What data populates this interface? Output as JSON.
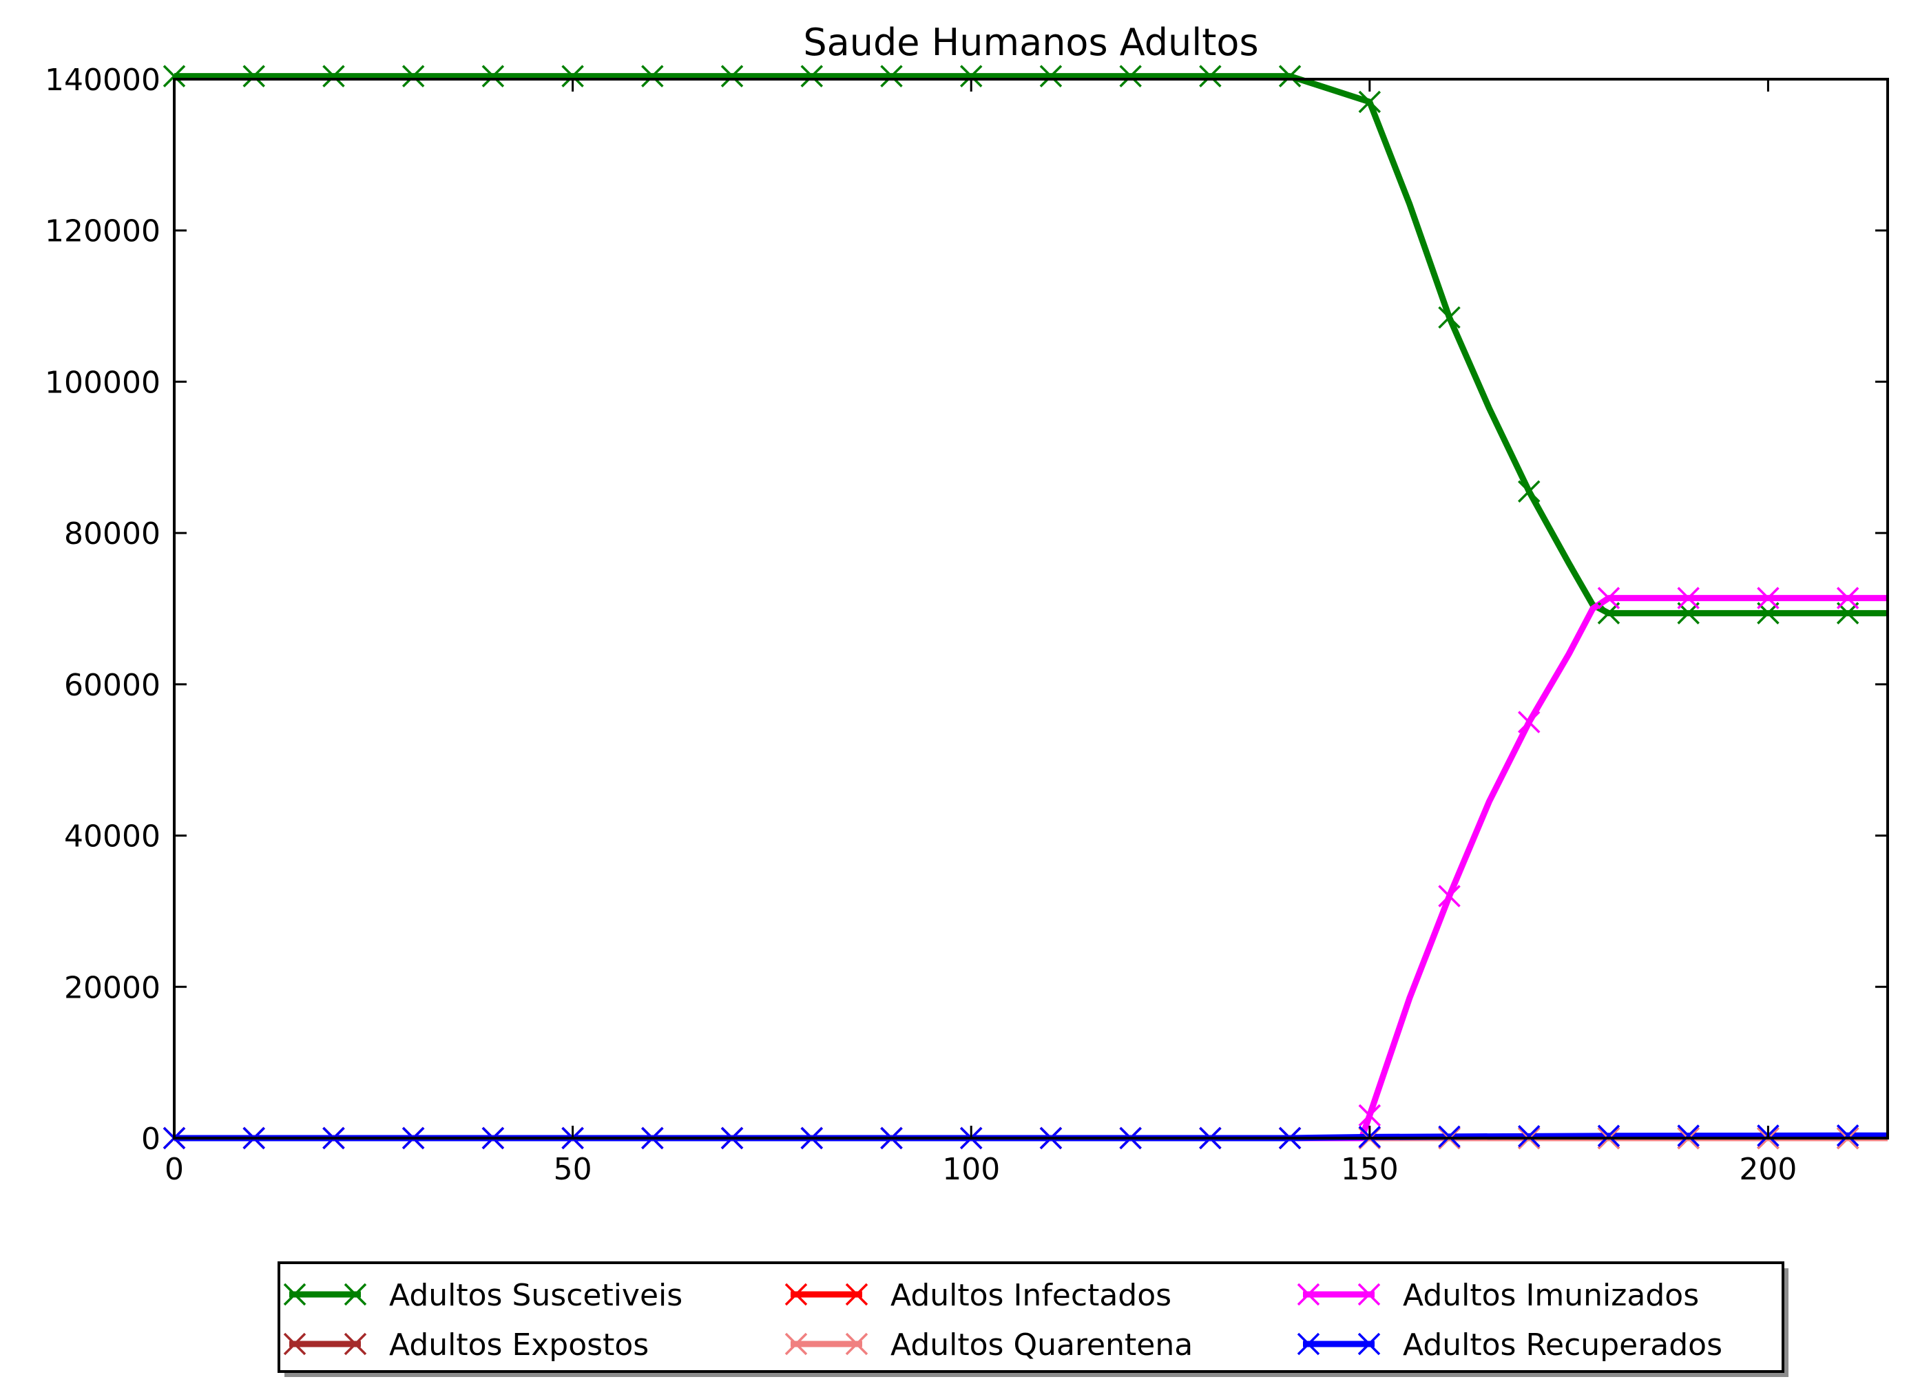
{
  "chart_data": {
    "type": "line",
    "title": "Saude Humanos Adultos",
    "xlabel": "",
    "ylabel": "",
    "xlim": [
      0,
      215
    ],
    "ylim": [
      0,
      140000
    ],
    "xticks": [
      0,
      50,
      100,
      150,
      200
    ],
    "yticks": [
      0,
      20000,
      40000,
      60000,
      80000,
      100000,
      120000,
      140000
    ],
    "xtick_labels": [
      "0",
      "50",
      "100",
      "150",
      "200"
    ],
    "ytick_labels": [
      "0",
      "20000",
      "40000",
      "60000",
      "80000",
      "100000",
      "120000",
      "140000"
    ],
    "grid": false,
    "legend_position": "bottom-center",
    "series": [
      {
        "name": "Adultos Suscetiveis",
        "color": "#008000",
        "points": [
          [
            0,
            140400
          ],
          [
            10,
            140400
          ],
          [
            20,
            140400
          ],
          [
            30,
            140400
          ],
          [
            40,
            140400
          ],
          [
            50,
            140400
          ],
          [
            60,
            140400
          ],
          [
            70,
            140400
          ],
          [
            80,
            140400
          ],
          [
            90,
            140400
          ],
          [
            100,
            140400
          ],
          [
            110,
            140400
          ],
          [
            120,
            140400
          ],
          [
            130,
            140400
          ],
          [
            140,
            140400
          ],
          [
            150,
            137000
          ],
          [
            155,
            123500
          ],
          [
            160,
            108500
          ],
          [
            165,
            96500
          ],
          [
            170,
            85500
          ],
          [
            175,
            76000
          ],
          [
            178,
            70500
          ],
          [
            180,
            69400
          ],
          [
            190,
            69400
          ],
          [
            200,
            69400
          ],
          [
            210,
            69400
          ],
          [
            215,
            69400
          ]
        ],
        "marker_x": [
          0,
          10,
          20,
          30,
          40,
          50,
          60,
          70,
          80,
          90,
          100,
          110,
          120,
          130,
          140,
          150,
          160,
          170,
          180,
          190,
          200,
          210
        ]
      },
      {
        "name": "Adultos Expostos",
        "color": "#a52a2a",
        "points": [
          [
            0,
            0
          ],
          [
            215,
            0
          ]
        ],
        "marker_x": [
          0,
          10,
          20,
          30,
          40,
          50,
          60,
          70,
          80,
          90,
          100,
          110,
          120,
          130,
          140,
          150,
          160,
          170,
          180,
          190,
          200,
          210
        ]
      },
      {
        "name": "Adultos Infectados",
        "color": "#ff0000",
        "points": [
          [
            0,
            0
          ],
          [
            215,
            0
          ]
        ],
        "marker_x": [
          0,
          10,
          20,
          30,
          40,
          50,
          60,
          70,
          80,
          90,
          100,
          110,
          120,
          130,
          140,
          150,
          160,
          170,
          180,
          190,
          200,
          210
        ]
      },
      {
        "name": "Adultos Quarentena",
        "color": "#f08080",
        "points": [
          [
            0,
            0
          ],
          [
            215,
            0
          ]
        ],
        "marker_x": [
          0,
          10,
          20,
          30,
          40,
          50,
          60,
          70,
          80,
          90,
          100,
          110,
          120,
          130,
          140,
          150,
          160,
          170,
          180,
          190,
          200,
          210
        ]
      },
      {
        "name": "Adultos Imunizados",
        "color": "#ff00ff",
        "points": [
          [
            0,
            0
          ],
          [
            140,
            0
          ],
          [
            149,
            0
          ],
          [
            150,
            3000
          ],
          [
            155,
            18500
          ],
          [
            160,
            32000
          ],
          [
            165,
            44500
          ],
          [
            170,
            55000
          ],
          [
            175,
            64000
          ],
          [
            178,
            70000
          ],
          [
            180,
            71400
          ],
          [
            190,
            71400
          ],
          [
            200,
            71400
          ],
          [
            210,
            71400
          ],
          [
            215,
            71400
          ]
        ],
        "marker_x": [
          150,
          160,
          170,
          180,
          190,
          200,
          210
        ]
      },
      {
        "name": "Adultos Recuperados",
        "color": "#0000ff",
        "points": [
          [
            0,
            0
          ],
          [
            140,
            0
          ],
          [
            150,
            150
          ],
          [
            180,
            300
          ],
          [
            215,
            350
          ]
        ],
        "marker_x": [
          0,
          10,
          20,
          30,
          40,
          50,
          60,
          70,
          80,
          90,
          100,
          110,
          120,
          130,
          140,
          150,
          160,
          170,
          180,
          190,
          200,
          210
        ]
      }
    ],
    "legend_order": [
      "Adultos Suscetiveis",
      "Adultos Expostos",
      "Adultos Infectados",
      "Adultos Quarentena",
      "Adultos Imunizados",
      "Adultos Recuperados"
    ]
  }
}
